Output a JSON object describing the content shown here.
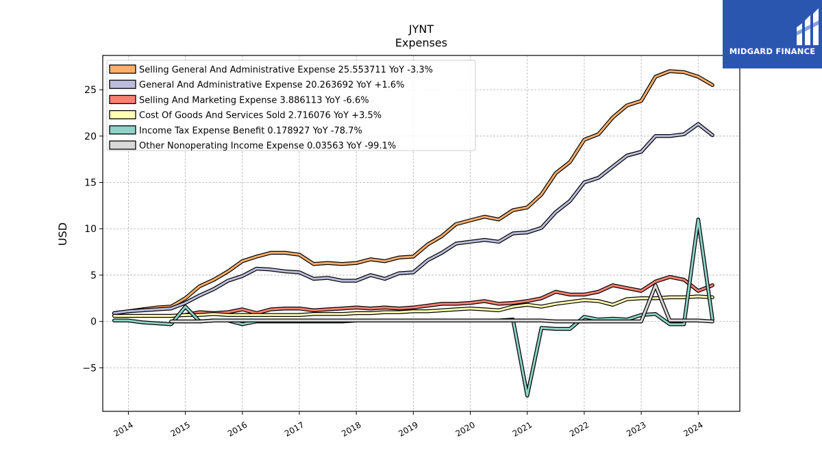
{
  "brand": {
    "name": "MIDGARD FINANCE",
    "background": "#2b56b0"
  },
  "chart_data": {
    "type": "line",
    "title": "JYNT",
    "subtitle": "Expenses",
    "xlabel": "",
    "ylabel": "USD",
    "xlim": [
      2013.55,
      2024.73
    ],
    "ylim": [
      -9.7,
      28.7
    ],
    "yticks": [
      -5,
      0,
      5,
      10,
      15,
      20,
      25
    ],
    "ytick_labels": [
      "−5",
      "0",
      "5",
      "10",
      "15",
      "20",
      "25"
    ],
    "xticks": [
      "2014",
      "2015",
      "2016",
      "2017",
      "2018",
      "2019",
      "2020",
      "2021",
      "2022",
      "2023",
      "2024"
    ],
    "grid": true,
    "legend_position": "top-left",
    "series": [
      {
        "name": "Selling General And Administrative Expense  25.553711 YoY -3.3%",
        "color": "#fdae6b",
        "x": [
          2013.75,
          2014.0,
          2014.25,
          2014.5,
          2014.75,
          2015.0,
          2015.25,
          2015.5,
          2015.75,
          2016.0,
          2016.25,
          2016.5,
          2016.75,
          2017.0,
          2017.25,
          2017.5,
          2017.75,
          2018.0,
          2018.25,
          2018.5,
          2018.75,
          2019.0,
          2019.25,
          2019.5,
          2019.75,
          2020.0,
          2020.25,
          2020.5,
          2020.75,
          2021.0,
          2021.25,
          2021.5,
          2021.75,
          2022.0,
          2022.25,
          2022.5,
          2022.75,
          2023.0,
          2023.25,
          2023.5,
          2023.75,
          2024.0,
          2024.25
        ],
        "y": [
          0.9,
          1.1,
          1.3,
          1.5,
          1.6,
          2.5,
          3.8,
          4.5,
          5.4,
          6.5,
          7.0,
          7.4,
          7.4,
          7.2,
          6.2,
          6.3,
          6.2,
          6.3,
          6.7,
          6.5,
          6.9,
          7.0,
          8.3,
          9.2,
          10.5,
          10.9,
          11.3,
          11.0,
          12.0,
          12.3,
          13.7,
          16.0,
          17.2,
          19.6,
          20.2,
          22.0,
          23.3,
          23.8,
          26.4,
          27.0,
          26.9,
          26.4,
          25.5
        ]
      },
      {
        "name": "General And Administrative Expense  20.263692 YoY +1.6%",
        "color": "#bcbddc",
        "x": [
          2013.75,
          2014.0,
          2014.25,
          2014.5,
          2014.75,
          2015.0,
          2015.25,
          2015.5,
          2015.75,
          2016.0,
          2016.25,
          2016.5,
          2016.75,
          2017.0,
          2017.25,
          2017.5,
          2017.75,
          2018.0,
          2018.25,
          2018.5,
          2018.75,
          2019.0,
          2019.25,
          2019.5,
          2019.75,
          2020.0,
          2020.25,
          2020.5,
          2020.75,
          2021.0,
          2021.25,
          2021.5,
          2021.75,
          2022.0,
          2022.25,
          2022.5,
          2022.75,
          2023.0,
          2023.25,
          2023.5,
          2023.75,
          2024.0,
          2024.25
        ],
        "y": [
          0.9,
          1.1,
          1.2,
          1.3,
          1.4,
          2.0,
          2.8,
          3.5,
          4.4,
          4.9,
          5.7,
          5.6,
          5.4,
          5.3,
          4.6,
          4.7,
          4.4,
          4.4,
          5.0,
          4.6,
          5.2,
          5.3,
          6.6,
          7.4,
          8.4,
          8.6,
          8.8,
          8.6,
          9.5,
          9.6,
          10.1,
          11.8,
          13.0,
          15.0,
          15.5,
          16.7,
          17.9,
          18.3,
          20.0,
          20.0,
          20.2,
          21.3,
          20.1
        ]
      },
      {
        "name": "Selling And Marketing Expense  3.886113 YoY -6.6%",
        "color": "#fb8072",
        "x": [
          2015.0,
          2015.25,
          2015.5,
          2015.75,
          2016.0,
          2016.25,
          2016.5,
          2016.75,
          2017.0,
          2017.25,
          2017.5,
          2017.75,
          2018.0,
          2018.25,
          2018.5,
          2018.75,
          2019.0,
          2019.25,
          2019.5,
          2019.75,
          2020.0,
          2020.25,
          2020.5,
          2020.75,
          2021.0,
          2021.25,
          2021.5,
          2021.75,
          2022.0,
          2022.25,
          2022.5,
          2022.75,
          2023.0,
          2023.25,
          2023.5,
          2023.75,
          2024.0,
          2024.25
        ],
        "y": [
          0.7,
          1.0,
          0.9,
          1.0,
          1.3,
          0.9,
          1.3,
          1.4,
          1.4,
          1.2,
          1.3,
          1.4,
          1.5,
          1.4,
          1.5,
          1.4,
          1.5,
          1.7,
          1.9,
          1.9,
          2.0,
          2.2,
          1.9,
          2.0,
          2.2,
          2.5,
          3.2,
          2.9,
          2.9,
          3.2,
          3.9,
          3.6,
          3.3,
          4.3,
          4.8,
          4.5,
          3.3,
          3.9
        ]
      },
      {
        "name": "Cost Of Goods And Services Sold  2.716076 YoY +3.5%",
        "color": "#ffffb3",
        "x": [
          2013.75,
          2014.0,
          2014.25,
          2014.5,
          2014.75,
          2015.0,
          2015.25,
          2015.5,
          2015.75,
          2016.0,
          2016.25,
          2016.5,
          2016.75,
          2017.0,
          2017.25,
          2017.5,
          2017.75,
          2018.0,
          2018.25,
          2018.5,
          2018.75,
          2019.0,
          2019.25,
          2019.5,
          2019.75,
          2020.0,
          2020.25,
          2020.5,
          2020.75,
          2021.0,
          2021.25,
          2021.5,
          2021.75,
          2022.0,
          2022.25,
          2022.5,
          2022.75,
          2023.0,
          2023.25,
          2023.5,
          2023.75,
          2024.0,
          2024.25
        ],
        "y": [
          0.6,
          0.6,
          0.6,
          0.6,
          0.6,
          0.7,
          0.7,
          0.8,
          0.7,
          0.7,
          0.7,
          0.7,
          0.7,
          0.7,
          0.8,
          0.8,
          0.8,
          0.9,
          0.9,
          1.0,
          1.0,
          1.1,
          1.1,
          1.2,
          1.3,
          1.4,
          1.3,
          1.2,
          1.6,
          1.8,
          1.6,
          1.9,
          2.1,
          2.3,
          2.2,
          1.8,
          2.4,
          2.5,
          2.5,
          2.6,
          2.6,
          2.7,
          2.6
        ]
      },
      {
        "name": "Income Tax Expense Benefit  0.178927 YoY -78.7%",
        "color": "#8dd3c7",
        "x": [
          2013.75,
          2014.0,
          2014.25,
          2014.5,
          2014.75,
          2015.0,
          2015.25,
          2015.5,
          2015.75,
          2016.0,
          2016.25,
          2016.5,
          2016.75,
          2017.0,
          2017.25,
          2017.5,
          2017.75,
          2018.0,
          2018.25,
          2018.5,
          2018.75,
          2019.0,
          2019.25,
          2019.5,
          2019.75,
          2020.0,
          2020.25,
          2020.5,
          2020.75,
          2021.0,
          2021.25,
          2021.5,
          2021.75,
          2022.0,
          2022.25,
          2022.5,
          2022.75,
          2023.0,
          2023.25,
          2023.5,
          2023.75,
          2024.0,
          2024.25
        ],
        "y": [
          0.1,
          0.1,
          -0.1,
          -0.2,
          -0.3,
          1.6,
          0.0,
          0.1,
          0.1,
          -0.3,
          0.0,
          0.0,
          0.0,
          0.0,
          0.0,
          0.0,
          0.0,
          0.1,
          0.1,
          0.1,
          0.1,
          0.1,
          0.1,
          0.1,
          0.1,
          0.1,
          0.1,
          0.1,
          0.2,
          -8.0,
          -0.7,
          -0.8,
          -0.8,
          0.5,
          0.2,
          0.3,
          0.2,
          0.7,
          0.8,
          -0.3,
          -0.3,
          11.0,
          0.2
        ]
      },
      {
        "name": "Other Nonoperating Income Expense  0.03563 YoY -99.1%",
        "color": "#d9d9d9",
        "x": [
          2014.75,
          2015.0,
          2015.25,
          2015.5,
          2015.75,
          2016.0,
          2016.25,
          2016.5,
          2016.75,
          2017.0,
          2017.25,
          2017.5,
          2017.75,
          2018.0,
          2018.25,
          2018.5,
          2018.75,
          2019.0,
          2019.25,
          2019.5,
          2019.75,
          2020.0,
          2020.25,
          2020.5,
          2020.75,
          2021.0,
          2021.25,
          2021.5,
          2021.75,
          2022.0,
          2022.25,
          2022.5,
          2022.75,
          2023.0,
          2023.25,
          2023.5,
          2023.75,
          2024.0,
          2024.25
        ],
        "y": [
          0.0,
          0.0,
          0.0,
          0.1,
          0.1,
          0.1,
          0.1,
          0.1,
          0.1,
          0.1,
          0.1,
          0.1,
          0.1,
          0.1,
          0.1,
          0.1,
          0.1,
          0.1,
          0.1,
          0.1,
          0.1,
          0.1,
          0.1,
          0.1,
          0.1,
          0.1,
          0.1,
          0.0,
          0.0,
          0.0,
          0.0,
          0.0,
          0.0,
          0.0,
          3.9,
          0.1,
          0.1,
          0.1,
          0.0
        ]
      }
    ]
  }
}
